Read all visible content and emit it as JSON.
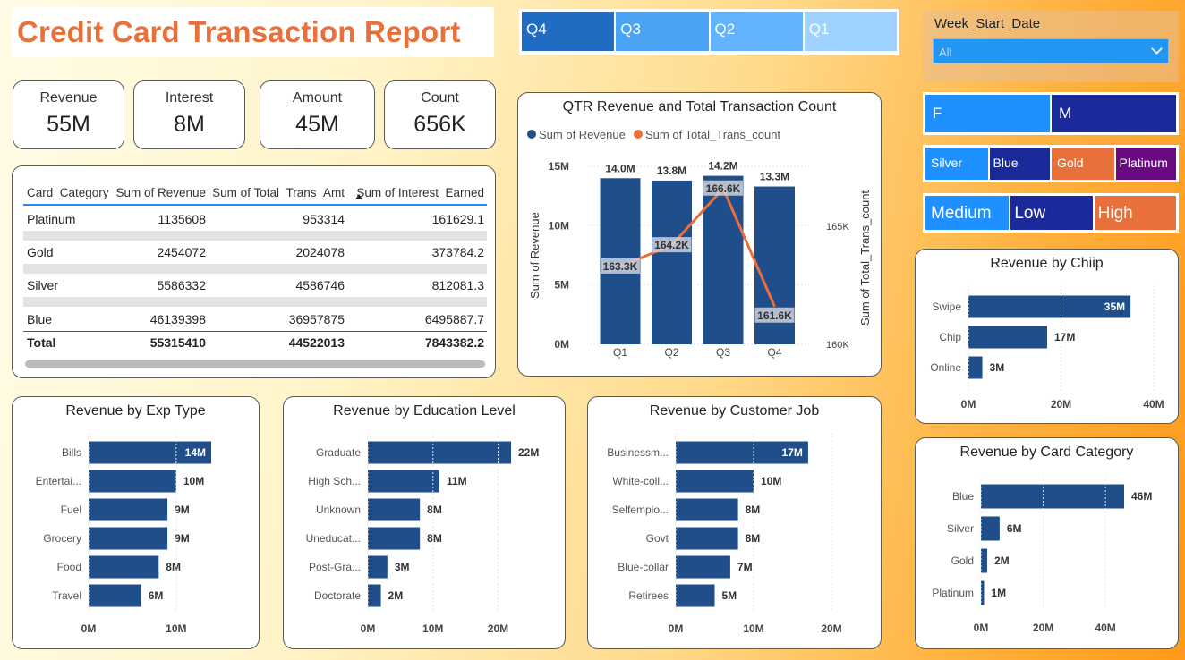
{
  "report_title": "Credit Card Transaction Report",
  "quarter_slicer": [
    {
      "label": "Q4",
      "selected": true
    },
    {
      "label": "Q3",
      "selected": false
    },
    {
      "label": "Q2",
      "selected": false
    },
    {
      "label": "Q1",
      "selected": false
    }
  ],
  "week_filter": {
    "label": "Week_Start_Date",
    "value": "All"
  },
  "gender_slicer": [
    "F",
    "M"
  ],
  "card_slicer": [
    "Silver",
    "Blue",
    "Gold",
    "Platinum"
  ],
  "income_slicer": [
    "Medium",
    "Low",
    "High"
  ],
  "kpis": {
    "revenue": {
      "label": "Revenue",
      "value": "55M"
    },
    "interest": {
      "label": "Interest",
      "value": "8M"
    },
    "amount": {
      "label": "Amount",
      "value": "45M"
    },
    "count": {
      "label": "Count",
      "value": "656K"
    }
  },
  "table": {
    "headers": [
      "Card_Category",
      "Sum of Revenue",
      "Sum of Total_Trans_Amt",
      "Sum of Interest_Earned"
    ],
    "rows": [
      [
        "Platinum",
        "1135608",
        "953314",
        "161629.1"
      ],
      [
        "Gold",
        "2454072",
        "2024078",
        "373784.2"
      ],
      [
        "Silver",
        "5586332",
        "4586746",
        "812081.3"
      ],
      [
        "Blue",
        "46139398",
        "36957875",
        "6495887.7"
      ]
    ],
    "total": [
      "Total",
      "55315410",
      "44522013",
      "7843382.2"
    ]
  },
  "colors": {
    "bar": "#1f4e8a",
    "line": "#e8703a",
    "title": "#e8703a",
    "slicer_selected": "#1f6cc2"
  },
  "chart_data": [
    {
      "type": "bar",
      "title": "QTR Revenue and Total Transaction Count",
      "categories": [
        "Q1",
        "Q2",
        "Q3",
        "Q4"
      ],
      "series": [
        {
          "name": "Sum of Revenue",
          "values": [
            14.0,
            13.8,
            14.2,
            13.3
          ],
          "labels": [
            "14.0M",
            "13.8M",
            "14.2M",
            "13.3M"
          ]
        },
        {
          "name": "Sum of Total_Trans_count",
          "values": [
            163.3,
            164.2,
            166.6,
            161.6
          ],
          "labels": [
            "163.3K",
            "164.2K",
            "166.6K",
            "161.6K"
          ],
          "chart": "line"
        }
      ],
      "ylabel": "Sum of Revenue",
      "y2label": "Sum of Total_Trans_count",
      "y_ticks": [
        "0M",
        "5M",
        "10M",
        "15M"
      ],
      "y2_ticks": [
        "160K",
        "165K"
      ],
      "ylim": [
        0,
        15
      ],
      "y2lim": [
        160,
        167
      ],
      "legend": "top-left"
    },
    {
      "type": "bar",
      "orientation": "horizontal",
      "title": "Revenue by Chiip",
      "categories": [
        "Swipe",
        "Chip",
        "Online"
      ],
      "values": [
        35,
        17,
        3
      ],
      "labels": [
        "35M",
        "17M",
        "3M"
      ],
      "x_ticks": [
        "0M",
        "20M",
        "40M"
      ],
      "xlim": [
        0,
        40
      ]
    },
    {
      "type": "bar",
      "orientation": "horizontal",
      "title": "Revenue by Exp Type",
      "categories": [
        "Bills",
        "Entertai...",
        "Fuel",
        "Grocery",
        "Food",
        "Travel"
      ],
      "values": [
        14,
        10,
        9,
        9,
        8,
        6
      ],
      "labels": [
        "14M",
        "10M",
        "9M",
        "9M",
        "8M",
        "6M"
      ],
      "x_ticks": [
        "0M",
        "10M"
      ],
      "xlim": [
        0,
        14
      ]
    },
    {
      "type": "bar",
      "orientation": "horizontal",
      "title": "Revenue by Education Level",
      "categories": [
        "Graduate",
        "High Sch...",
        "Unknown",
        "Uneducat...",
        "Post-Gra...",
        "Doctorate"
      ],
      "values": [
        22,
        11,
        8,
        8,
        3,
        2
      ],
      "labels": [
        "22M",
        "11M",
        "8M",
        "8M",
        "3M",
        "2M"
      ],
      "x_ticks": [
        "0M",
        "10M",
        "20M"
      ],
      "xlim": [
        0,
        22
      ]
    },
    {
      "type": "bar",
      "orientation": "horizontal",
      "title": "Revenue by Customer Job",
      "categories": [
        "Businessm...",
        "White-coll...",
        "Selfemplo...",
        "Govt",
        "Blue-collar",
        "Retirees"
      ],
      "values": [
        17,
        10,
        8,
        8,
        7,
        5
      ],
      "labels": [
        "17M",
        "10M",
        "8M",
        "8M",
        "7M",
        "5M"
      ],
      "x_ticks": [
        "0M",
        "10M",
        "20M"
      ],
      "xlim": [
        0,
        20
      ]
    },
    {
      "type": "bar",
      "orientation": "horizontal",
      "title": "Revenue by Card Category",
      "categories": [
        "Blue",
        "Silver",
        "Gold",
        "Platinum"
      ],
      "values": [
        46,
        6,
        2,
        1
      ],
      "labels": [
        "46M",
        "6M",
        "2M",
        "1M"
      ],
      "x_ticks": [
        "0M",
        "20M",
        "40M"
      ],
      "xlim": [
        0,
        46
      ]
    }
  ]
}
